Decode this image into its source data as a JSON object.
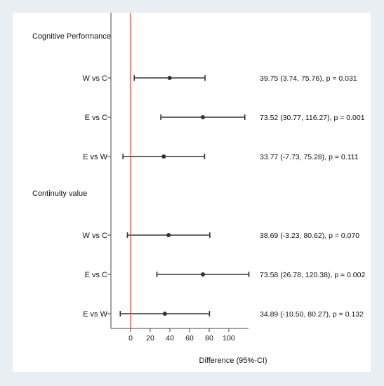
{
  "chart_data": {
    "type": "forest",
    "xlabel": "Difference (95%-CI)",
    "xlim": [
      -20,
      120
    ],
    "xticks": [
      0,
      20,
      40,
      60,
      80,
      100
    ],
    "reference_line": 0,
    "reference_color": "#e53935",
    "point_color": "#333333",
    "groups": [
      {
        "name": "Cognitive Performance",
        "rows": [
          {
            "label": "W vs C",
            "estimate": 39.75,
            "lower": 3.74,
            "upper": 75.76,
            "text": "39.75 (3.74, 75.76), p = 0.031"
          },
          {
            "label": "E vs C",
            "estimate": 73.52,
            "lower": 30.77,
            "upper": 116.27,
            "text": "73.52 (30.77, 116.27), p = 0.001"
          },
          {
            "label": "E vs W",
            "estimate": 33.77,
            "lower": -7.73,
            "upper": 75.28,
            "text": "33.77 (-7.73, 75.28), p = 0.111"
          }
        ]
      },
      {
        "name": "Continuity value",
        "rows": [
          {
            "label": "W vs C",
            "estimate": 38.69,
            "lower": -3.23,
            "upper": 80.62,
            "text": "38.69 (-3.23, 80.62), p = 0.070"
          },
          {
            "label": "E vs C",
            "estimate": 73.58,
            "lower": 26.78,
            "upper": 120.38,
            "text": "73.58 (26.78, 120.38), p = 0.002"
          },
          {
            "label": "E vs W",
            "estimate": 34.89,
            "lower": -10.5,
            "upper": 80.27,
            "text": "34.89 (-10.50, 80.27), p = 0.132"
          }
        ]
      }
    ]
  }
}
